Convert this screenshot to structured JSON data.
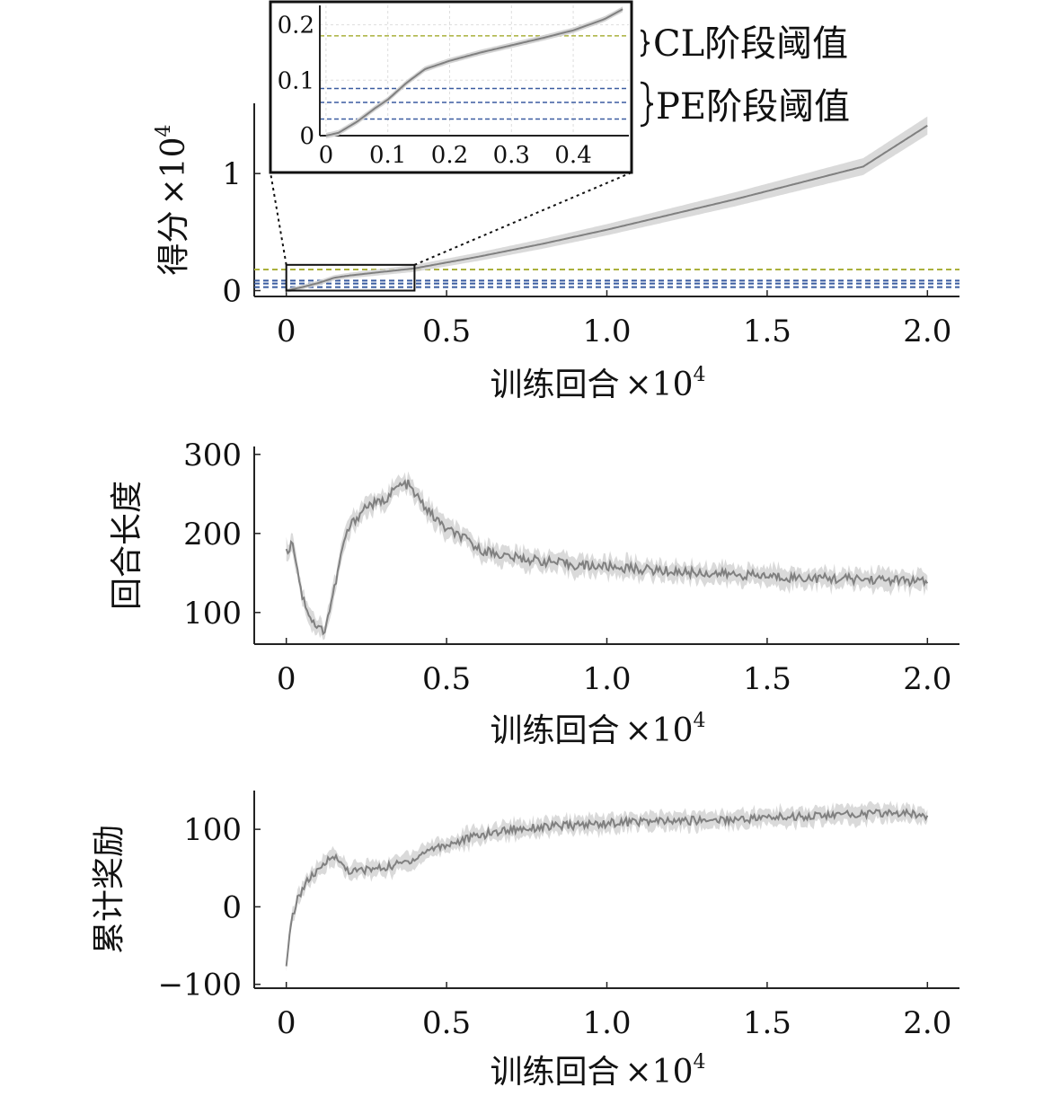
{
  "chart_data": [
    {
      "type": "line",
      "xlabel": "训练回合",
      "xlabel_multiplier": "×10",
      "xlabel_exponent": "4",
      "ylabel": "得分",
      "ylabel_multiplier": "×10",
      "ylabel_exponent": "4",
      "xlim": [
        -0.1,
        2.1
      ],
      "ylim": [
        -0.05,
        1.6
      ],
      "xticks": [
        0,
        0.5,
        1.0,
        1.5,
        2.0
      ],
      "xtick_labels": [
        "0",
        "0.5",
        "1.0",
        "1.5",
        "2.0"
      ],
      "yticks": [
        0,
        1
      ],
      "ytick_labels": [
        "0",
        "1"
      ],
      "series": [
        {
          "color": "#808080",
          "x": [
            0,
            0.05,
            0.1,
            0.15,
            0.2,
            0.25,
            0.3,
            0.35,
            0.4,
            0.45,
            0.5,
            0.6,
            0.7,
            0.8,
            0.9,
            1.0,
            1.2,
            1.4,
            1.6,
            1.8,
            2.0
          ],
          "y": [
            0,
            0.03,
            0.065,
            0.11,
            0.13,
            0.145,
            0.16,
            0.175,
            0.19,
            0.215,
            0.24,
            0.29,
            0.345,
            0.4,
            0.46,
            0.52,
            0.65,
            0.78,
            0.92,
            1.06,
            1.41
          ],
          "band": 0.06
        }
      ],
      "thresholds": [
        {
          "group": "CL",
          "y": 0.18,
          "color": "#aab03c"
        },
        {
          "group": "PE",
          "y": 0.085,
          "color": "#3b5ca0"
        },
        {
          "group": "PE",
          "y": 0.06,
          "color": "#3b5ca0"
        },
        {
          "group": "PE",
          "y": 0.03,
          "color": "#3b5ca0"
        }
      ],
      "annotations": [
        "CL阶段阈值",
        "PE阶段阈值"
      ],
      "zoom_box": {
        "x": [
          0,
          0.4
        ],
        "y": [
          0,
          0.22
        ]
      },
      "inset": {
        "xlim": [
          -0.01,
          0.49
        ],
        "ylim": [
          0,
          0.235
        ],
        "xticks": [
          0,
          0.1,
          0.2,
          0.3,
          0.4
        ],
        "xtick_labels": [
          "0",
          "0.1",
          "0.2",
          "0.3",
          "0.4"
        ],
        "yticks": [
          0,
          0.1,
          0.2
        ],
        "ytick_labels": [
          "0",
          "0.1",
          "0.2"
        ],
        "x": [
          0,
          0.02,
          0.05,
          0.08,
          0.1,
          0.13,
          0.16,
          0.2,
          0.25,
          0.3,
          0.35,
          0.4,
          0.45,
          0.48
        ],
        "y": [
          0,
          0.005,
          0.025,
          0.05,
          0.065,
          0.095,
          0.12,
          0.135,
          0.15,
          0.163,
          0.176,
          0.19,
          0.21,
          0.228
        ],
        "band": 0.005
      }
    },
    {
      "type": "line",
      "xlabel": "训练回合",
      "xlabel_multiplier": "×10",
      "xlabel_exponent": "4",
      "ylabel": "回合长度",
      "xlim": [
        -0.1,
        2.1
      ],
      "ylim": [
        60,
        310
      ],
      "xticks": [
        0,
        0.5,
        1.0,
        1.5,
        2.0
      ],
      "xtick_labels": [
        "0",
        "0.5",
        "1.0",
        "1.5",
        "2.0"
      ],
      "yticks": [
        100,
        200,
        300
      ],
      "ytick_labels": [
        "100",
        "200",
        "300"
      ],
      "series": [
        {
          "color": "#808080",
          "x": [
            0,
            0.02,
            0.05,
            0.08,
            0.1,
            0.12,
            0.15,
            0.18,
            0.2,
            0.25,
            0.3,
            0.35,
            0.38,
            0.4,
            0.45,
            0.5,
            0.55,
            0.6,
            0.7,
            0.8,
            0.9,
            1.0,
            1.1,
            1.2,
            1.3,
            1.4,
            1.5,
            1.6,
            1.7,
            1.8,
            1.9,
            2.0
          ],
          "y": [
            175,
            190,
            120,
            90,
            80,
            78,
            130,
            190,
            210,
            235,
            240,
            260,
            262,
            250,
            225,
            205,
            195,
            180,
            170,
            165,
            160,
            158,
            155,
            152,
            150,
            148,
            146,
            144,
            143,
            142,
            141,
            138
          ],
          "band": 10
        }
      ]
    },
    {
      "type": "line",
      "xlabel": "训练回合",
      "xlabel_multiplier": "×10",
      "xlabel_exponent": "4",
      "ylabel": "累计奖励",
      "xlim": [
        -0.1,
        2.1
      ],
      "ylim": [
        -105,
        150
      ],
      "xticks": [
        0,
        0.5,
        1.0,
        1.5,
        2.0
      ],
      "xtick_labels": [
        "0",
        "0.5",
        "1.0",
        "1.5",
        "2.0"
      ],
      "yticks": [
        -100,
        0,
        100
      ],
      "ytick_labels": [
        "−100",
        "0",
        "100"
      ],
      "series": [
        {
          "color": "#808080",
          "x": [
            0,
            0.01,
            0.02,
            0.04,
            0.06,
            0.08,
            0.1,
            0.12,
            0.14,
            0.16,
            0.2,
            0.25,
            0.3,
            0.35,
            0.4,
            0.45,
            0.5,
            0.6,
            0.7,
            0.8,
            0.9,
            1.0,
            1.1,
            1.2,
            1.3,
            1.4,
            1.5,
            1.6,
            1.7,
            1.8,
            1.9,
            2.0
          ],
          "y": [
            -80,
            -40,
            -10,
            15,
            30,
            40,
            45,
            55,
            68,
            60,
            45,
            48,
            50,
            55,
            62,
            75,
            80,
            92,
            100,
            103,
            105,
            108,
            110,
            110,
            112,
            113,
            115,
            117,
            118,
            120,
            121,
            118
          ],
          "band": 9
        }
      ]
    }
  ]
}
